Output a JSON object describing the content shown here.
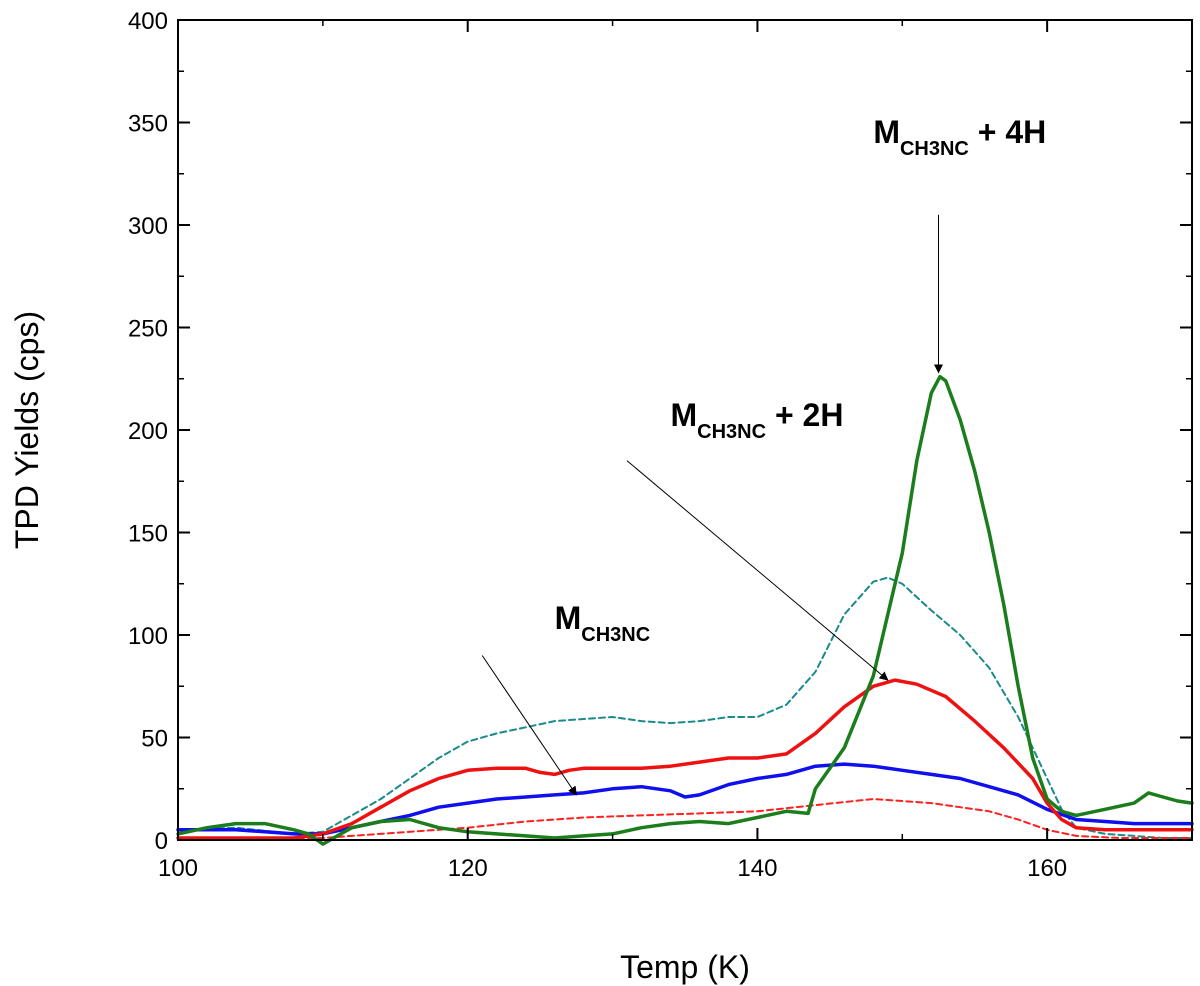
{
  "chart_data": {
    "type": "line",
    "title": "",
    "xlabel": "Temp (K)",
    "ylabel": "TPD Yields (cps)",
    "xlim": [
      100,
      170
    ],
    "ylim": [
      0,
      400
    ],
    "x_ticks": [
      100,
      120,
      140,
      160
    ],
    "y_ticks": [
      0,
      50,
      100,
      150,
      200,
      250,
      300,
      350,
      400
    ],
    "grid": false,
    "series": [
      {
        "name": "teal-dashed",
        "color": "#1a8a8a",
        "style": "dashed",
        "points": [
          [
            100,
            5
          ],
          [
            104,
            6
          ],
          [
            108,
            3
          ],
          [
            110,
            4
          ],
          [
            112,
            12
          ],
          [
            114,
            20
          ],
          [
            116,
            30
          ],
          [
            118,
            40
          ],
          [
            120,
            48
          ],
          [
            122,
            52
          ],
          [
            124,
            55
          ],
          [
            126,
            58
          ],
          [
            128,
            59
          ],
          [
            130,
            60
          ],
          [
            132,
            58
          ],
          [
            134,
            57
          ],
          [
            136,
            58
          ],
          [
            138,
            60
          ],
          [
            140,
            60
          ],
          [
            142,
            66
          ],
          [
            144,
            82
          ],
          [
            146,
            110
          ],
          [
            148,
            126
          ],
          [
            149,
            128
          ],
          [
            150,
            125
          ],
          [
            152,
            112
          ],
          [
            154,
            100
          ],
          [
            156,
            84
          ],
          [
            158,
            60
          ],
          [
            160,
            30
          ],
          [
            161,
            15
          ],
          [
            162,
            6
          ],
          [
            164,
            3
          ],
          [
            166,
            2
          ],
          [
            168,
            1
          ],
          [
            170,
            1
          ]
        ]
      },
      {
        "name": "red-dashed",
        "color": "#ff2020",
        "style": "dashed",
        "points": [
          [
            100,
            1
          ],
          [
            104,
            1
          ],
          [
            108,
            1
          ],
          [
            110,
            1
          ],
          [
            112,
            2
          ],
          [
            116,
            4
          ],
          [
            120,
            6
          ],
          [
            124,
            9
          ],
          [
            128,
            11
          ],
          [
            132,
            12
          ],
          [
            136,
            13
          ],
          [
            140,
            14
          ],
          [
            144,
            17
          ],
          [
            148,
            20
          ],
          [
            152,
            18
          ],
          [
            156,
            14
          ],
          [
            158,
            10
          ],
          [
            160,
            5
          ],
          [
            162,
            2
          ],
          [
            165,
            1
          ],
          [
            170,
            1
          ]
        ]
      },
      {
        "name": "blue-solid",
        "color": "#1010ee",
        "style": "solid",
        "points": [
          [
            100,
            5
          ],
          [
            102,
            5
          ],
          [
            104,
            5
          ],
          [
            106,
            4
          ],
          [
            108,
            3
          ],
          [
            110,
            3
          ],
          [
            112,
            6
          ],
          [
            114,
            9
          ],
          [
            116,
            12
          ],
          [
            118,
            16
          ],
          [
            120,
            18
          ],
          [
            122,
            20
          ],
          [
            124,
            21
          ],
          [
            126,
            22
          ],
          [
            128,
            23
          ],
          [
            130,
            25
          ],
          [
            132,
            26
          ],
          [
            134,
            24
          ],
          [
            135,
            21
          ],
          [
            136,
            22
          ],
          [
            138,
            27
          ],
          [
            140,
            30
          ],
          [
            142,
            32
          ],
          [
            144,
            36
          ],
          [
            146,
            37
          ],
          [
            148,
            36
          ],
          [
            150,
            34
          ],
          [
            152,
            32
          ],
          [
            154,
            30
          ],
          [
            156,
            26
          ],
          [
            158,
            22
          ],
          [
            160,
            15
          ],
          [
            162,
            10
          ],
          [
            164,
            9
          ],
          [
            166,
            8
          ],
          [
            168,
            8
          ],
          [
            170,
            8
          ]
        ]
      },
      {
        "name": "red-solid",
        "color": "#ee1111",
        "style": "solid",
        "points": [
          [
            100,
            1
          ],
          [
            102,
            1
          ],
          [
            104,
            1
          ],
          [
            106,
            1
          ],
          [
            108,
            1
          ],
          [
            110,
            3
          ],
          [
            112,
            8
          ],
          [
            114,
            16
          ],
          [
            116,
            24
          ],
          [
            118,
            30
          ],
          [
            120,
            34
          ],
          [
            122,
            35
          ],
          [
            124,
            35
          ],
          [
            125,
            33
          ],
          [
            126,
            32
          ],
          [
            127,
            34
          ],
          [
            128,
            35
          ],
          [
            130,
            35
          ],
          [
            132,
            35
          ],
          [
            134,
            36
          ],
          [
            136,
            38
          ],
          [
            138,
            40
          ],
          [
            140,
            40
          ],
          [
            142,
            42
          ],
          [
            144,
            52
          ],
          [
            146,
            65
          ],
          [
            148,
            75
          ],
          [
            149.5,
            78
          ],
          [
            151,
            76
          ],
          [
            153,
            70
          ],
          [
            155,
            58
          ],
          [
            157,
            45
          ],
          [
            159,
            30
          ],
          [
            160,
            18
          ],
          [
            161,
            10
          ],
          [
            162,
            6
          ],
          [
            164,
            5
          ],
          [
            166,
            5
          ],
          [
            168,
            5
          ],
          [
            170,
            5
          ]
        ]
      },
      {
        "name": "green-solid",
        "color": "#1b7d1b",
        "style": "solid",
        "points": [
          [
            100,
            3
          ],
          [
            102,
            6
          ],
          [
            104,
            8
          ],
          [
            106,
            8
          ],
          [
            108,
            5
          ],
          [
            109,
            3
          ],
          [
            110,
            -2
          ],
          [
            111,
            2
          ],
          [
            112,
            6
          ],
          [
            114,
            9
          ],
          [
            116,
            10
          ],
          [
            118,
            6
          ],
          [
            120,
            4
          ],
          [
            122,
            3
          ],
          [
            124,
            2
          ],
          [
            126,
            1
          ],
          [
            128,
            2
          ],
          [
            130,
            3
          ],
          [
            132,
            6
          ],
          [
            134,
            8
          ],
          [
            136,
            9
          ],
          [
            138,
            8
          ],
          [
            140,
            11
          ],
          [
            142,
            14
          ],
          [
            143.5,
            13
          ],
          [
            144,
            25
          ],
          [
            146,
            45
          ],
          [
            148,
            80
          ],
          [
            150,
            140
          ],
          [
            151,
            185
          ],
          [
            152,
            218
          ],
          [
            152.6,
            226
          ],
          [
            153,
            224
          ],
          [
            154,
            205
          ],
          [
            155,
            180
          ],
          [
            156,
            150
          ],
          [
            157,
            115
          ],
          [
            158,
            75
          ],
          [
            159,
            40
          ],
          [
            160,
            20
          ],
          [
            161,
            14
          ],
          [
            162,
            12
          ],
          [
            164,
            15
          ],
          [
            166,
            18
          ],
          [
            167,
            23
          ],
          [
            168,
            21
          ],
          [
            169,
            19
          ],
          [
            170,
            18
          ]
        ]
      }
    ],
    "annotations": [
      {
        "label": "M",
        "sub": "CH3NC",
        "suffix": "",
        "text_xy": [
          126,
          103
        ],
        "arrow_from": [
          121,
          90
        ],
        "arrow_to": [
          127.5,
          22
        ]
      },
      {
        "label": "M",
        "sub": "CH3NC",
        "suffix": " + 2H",
        "text_xy": [
          134,
          202
        ],
        "arrow_from": [
          131,
          185
        ],
        "arrow_to": [
          149,
          78
        ]
      },
      {
        "label": "M",
        "sub": "CH3NC",
        "suffix": " + 4H",
        "text_xy": [
          148,
          340
        ],
        "arrow_from": [
          152.5,
          305
        ],
        "arrow_to": [
          152.5,
          228
        ]
      }
    ]
  }
}
